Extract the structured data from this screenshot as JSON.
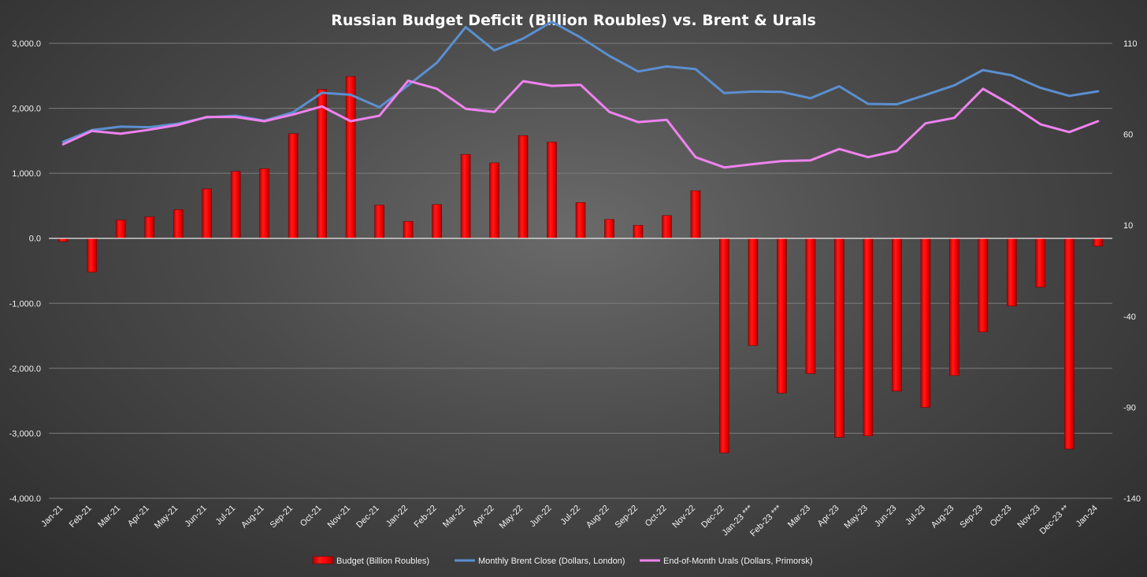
{
  "chart_data": {
    "type": "bar+line",
    "title": "Russian Budget Deficit (Billion Roubles) vs. Brent & Urals",
    "categories": [
      "Jan-21",
      "Feb-21",
      "Mar-21",
      "Apr-21",
      "May-21",
      "Jun-21",
      "Jul-21",
      "Aug-21",
      "Sep-21",
      "Oct-21",
      "Nov-21",
      "Dec-21",
      "Jan-22",
      "Feb-22",
      "Mar-22",
      "Apr-22",
      "May-22",
      "Jun-22",
      "Jul-22",
      "Aug-22",
      "Sep-22",
      "Oct-22",
      "Nov-22",
      "Dec-22",
      "Jan-23 ***",
      "Feb-23 ***",
      "Mar-23",
      "Apr-23",
      "May-23",
      "Jun-23",
      "Jul-23",
      "Aug-23",
      "Sep-23",
      "Oct-23",
      "Nov-23",
      "Dec-23 **",
      "Jan-24"
    ],
    "y_left": {
      "min": -4000,
      "max": 3000,
      "step": 1000,
      "tick_labels": [
        "-4,000.0",
        "-3,000.0",
        "-2,000.0",
        "-1,000.0",
        "0.0",
        "1,000.0",
        "2,000.0",
        "3,000.0"
      ]
    },
    "y_right": {
      "min": -140,
      "max": 110,
      "step": 50,
      "tick_labels": [
        "-140",
        "-90",
        "-40",
        "10",
        "60",
        "110"
      ]
    },
    "grid": true,
    "legend_position": "bottom",
    "series": [
      {
        "name": "Budget (Billion Roubles)",
        "kind": "bar",
        "axis": "left",
        "color": "#ff0000",
        "values": [
          -50,
          -520,
          280,
          330,
          440,
          760,
          1030,
          1070,
          1610,
          2290,
          2490,
          510,
          260,
          520,
          1290,
          1160,
          1580,
          1480,
          550,
          290,
          200,
          350,
          730,
          -3300,
          -1650,
          -2380,
          -2080,
          -3060,
          -3040,
          -2350,
          -2600,
          -2110,
          -1440,
          -1040,
          -750,
          -3240,
          -120
        ]
      },
      {
        "name": "Monthly Brent Close (Dollars, London)",
        "kind": "line",
        "axis": "right",
        "color": "#5b8fd0",
        "values": [
          55.9,
          62.3,
          64.2,
          63.9,
          65.9,
          69.3,
          70.2,
          67.5,
          72.1,
          82.8,
          81.7,
          74.9,
          86.9,
          99.3,
          118.9,
          106.1,
          112.6,
          121.8,
          113.2,
          103.1,
          94.5,
          97.3,
          95.8,
          82.6,
          83.5,
          83.3,
          79.8,
          86.4,
          76.7,
          76.5,
          81.6,
          86.9,
          95.3,
          92.4,
          85.5,
          81.1,
          83.6
        ]
      },
      {
        "name": "End-of-Month Urals (Dollars, Primorsk)",
        "kind": "line",
        "axis": "right",
        "color": "#ee82ee",
        "values": [
          54.5,
          61.8,
          60.3,
          62.5,
          65.2,
          69.5,
          69.5,
          67.2,
          70.9,
          75.3,
          67.2,
          70.2,
          89.4,
          85.0,
          74.0,
          72.3,
          89.2,
          86.6,
          87.2,
          72.3,
          66.7,
          67.9,
          47.4,
          41.8,
          43.6,
          45.3,
          45.7,
          51.9,
          47.4,
          50.9,
          66.0,
          69.0,
          85.0,
          76.0,
          65.5,
          61.2,
          67.2
        ]
      }
    ]
  }
}
